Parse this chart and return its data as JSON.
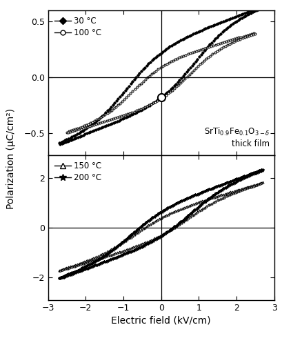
{
  "top_panel": {
    "xlim": [
      -3,
      3
    ],
    "ylim": [
      -0.7,
      0.6
    ],
    "yticks": [
      -0.5,
      0.0,
      0.5
    ],
    "legend_labels": [
      "30 °C",
      "100 °C"
    ]
  },
  "bottom_panel": {
    "xlim": [
      -3,
      3
    ],
    "ylim": [
      -2.9,
      2.9
    ],
    "yticks": [
      -2,
      0,
      2
    ],
    "legend_labels": [
      "150 °C",
      "200 °C"
    ]
  },
  "xlabel": "Electric field (kV/cm)",
  "ylabel": "Polarization (μC/cm²)",
  "xticks": [
    -3,
    -2,
    -1,
    0,
    1,
    2,
    3
  ],
  "background_color": "#ffffff"
}
